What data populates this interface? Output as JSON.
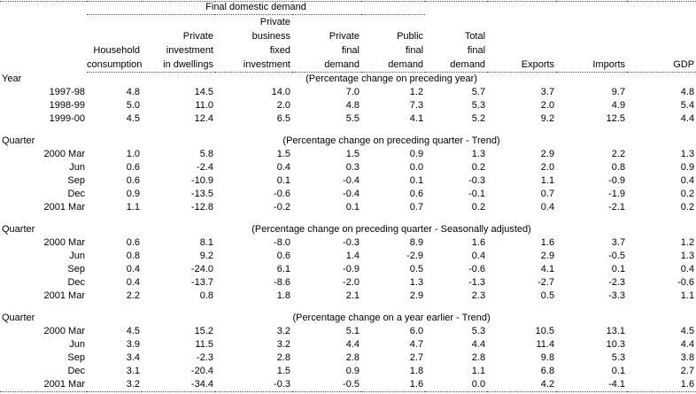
{
  "colors": {
    "background": "#ffffff",
    "text": "#000000",
    "rule": "#555555"
  },
  "table": {
    "group_header": "Final domestic demand",
    "column_headers": [
      [
        "",
        "",
        "Household",
        "consumption"
      ],
      [
        "",
        "Private",
        "investment",
        "in dwellings"
      ],
      [
        "Private",
        "business",
        "fixed",
        "investment"
      ],
      [
        "",
        "Private",
        "final",
        "demand"
      ],
      [
        "",
        "Public",
        "final",
        "demand"
      ],
      [
        "",
        "Total",
        "final",
        "demand"
      ],
      [
        "",
        "",
        "",
        "Exports"
      ],
      [
        "",
        "",
        "",
        "Imports"
      ],
      [
        "",
        "",
        "",
        "GDP"
      ]
    ],
    "sections": [
      {
        "label": "Year",
        "note": "(Percentage change on preceding year)",
        "rows": [
          {
            "label": "1997-98",
            "values": [
              "4.8",
              "14.5",
              "14.0",
              "7.0",
              "1.2",
              "5.7",
              "3.7",
              "9.7",
              "4.8"
            ]
          },
          {
            "label": "1998-99",
            "values": [
              "5.0",
              "11.0",
              "2.0",
              "4.8",
              "7.3",
              "5.3",
              "2.0",
              "4.9",
              "5.4"
            ]
          },
          {
            "label": "1999-00",
            "values": [
              "4.5",
              "12.4",
              "6.5",
              "5.5",
              "4.1",
              "5.2",
              "9.2",
              "12.5",
              "4.4"
            ]
          }
        ]
      },
      {
        "label": "Quarter",
        "note": "(Percentage change on preceding quarter - Trend)",
        "rows": [
          {
            "label": "2000 Mar",
            "values": [
              "1.0",
              "5.8",
              "1.5",
              "1.5",
              "0.9",
              "1.3",
              "2.9",
              "2.2",
              "1.3"
            ]
          },
          {
            "label": "Jun",
            "values": [
              "0.6",
              "-2.4",
              "0.4",
              "0.3",
              "0.0",
              "0.2",
              "2.0",
              "0.8",
              "0.9"
            ]
          },
          {
            "label": "Sep",
            "values": [
              "0.6",
              "-10.9",
              "0.1",
              "-0.4",
              "0.1",
              "-0.3",
              "1.1",
              "-0.9",
              "0.4"
            ]
          },
          {
            "label": "Dec",
            "values": [
              "0.9",
              "-13.5",
              "-0.6",
              "-0.4",
              "0.6",
              "-0.1",
              "0.7",
              "-1.9",
              "0.2"
            ]
          },
          {
            "label": "2001 Mar",
            "values": [
              "1.1",
              "-12.8",
              "-0.2",
              "0.1",
              "0.7",
              "0.2",
              "0.4",
              "-2.1",
              "0.2"
            ]
          }
        ]
      },
      {
        "label": "Quarter",
        "note": "(Percentage change on preceding quarter - Seasonally adjusted)",
        "rows": [
          {
            "label": "2000 Mar",
            "values": [
              "0.6",
              "8.1",
              "-8.0",
              "-0.3",
              "8.9",
              "1.6",
              "1.6",
              "3.7",
              "1.2"
            ]
          },
          {
            "label": "Jun",
            "values": [
              "0.8",
              "9.2",
              "0.6",
              "1.4",
              "-2.9",
              "0.4",
              "2.9",
              "-0.5",
              "1.3"
            ]
          },
          {
            "label": "Sep",
            "values": [
              "0.4",
              "-24.0",
              "6.1",
              "-0.9",
              "0.5",
              "-0.6",
              "4.1",
              "0.1",
              "0.4"
            ]
          },
          {
            "label": "Dec",
            "values": [
              "0.4",
              "-13.7",
              "-8.6",
              "-2.0",
              "1.3",
              "-1.3",
              "-2.7",
              "-2.3",
              "-0.6"
            ]
          },
          {
            "label": "2001 Mar",
            "values": [
              "2.2",
              "0.8",
              "1.8",
              "2.1",
              "2.9",
              "2.3",
              "0.5",
              "-3.3",
              "1.1"
            ]
          }
        ]
      },
      {
        "label": "Quarter",
        "note": "(Percentage change on a year earlier - Trend)",
        "rows": [
          {
            "label": "2000 Mar",
            "values": [
              "4.5",
              "15.2",
              "3.2",
              "5.1",
              "6.0",
              "5.3",
              "10.5",
              "13.1",
              "4.5"
            ]
          },
          {
            "label": "Jun",
            "values": [
              "3.9",
              "11.5",
              "3.2",
              "4.4",
              "4.7",
              "4.4",
              "11.4",
              "10.3",
              "4.4"
            ]
          },
          {
            "label": "Sep",
            "values": [
              "3.4",
              "-2.3",
              "2.8",
              "2.8",
              "2.7",
              "2.8",
              "9.8",
              "5.3",
              "3.8"
            ]
          },
          {
            "label": "Dec",
            "values": [
              "3.1",
              "-20.4",
              "1.5",
              "0.9",
              "1.8",
              "1.1",
              "6.8",
              "0.1",
              "2.7"
            ]
          },
          {
            "label": "2001 Mar",
            "values": [
              "3.2",
              "-34.4",
              "-0.3",
              "-0.5",
              "1.6",
              "0.0",
              "4.2",
              "-4.1",
              "1.6"
            ]
          }
        ]
      }
    ]
  }
}
